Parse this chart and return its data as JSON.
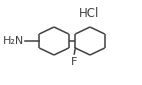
{
  "bg_color": "#ffffff",
  "line_color": "#404040",
  "text_color": "#404040",
  "lw": 1.1,
  "title": "HCl",
  "title_fontsize": 8.5,
  "label_NH2": "H₂N",
  "label_NH2_fontsize": 8.0,
  "label_F": "F",
  "label_F_fontsize": 8.0,
  "figw": 1.42,
  "figh": 0.85,
  "dpi": 100
}
